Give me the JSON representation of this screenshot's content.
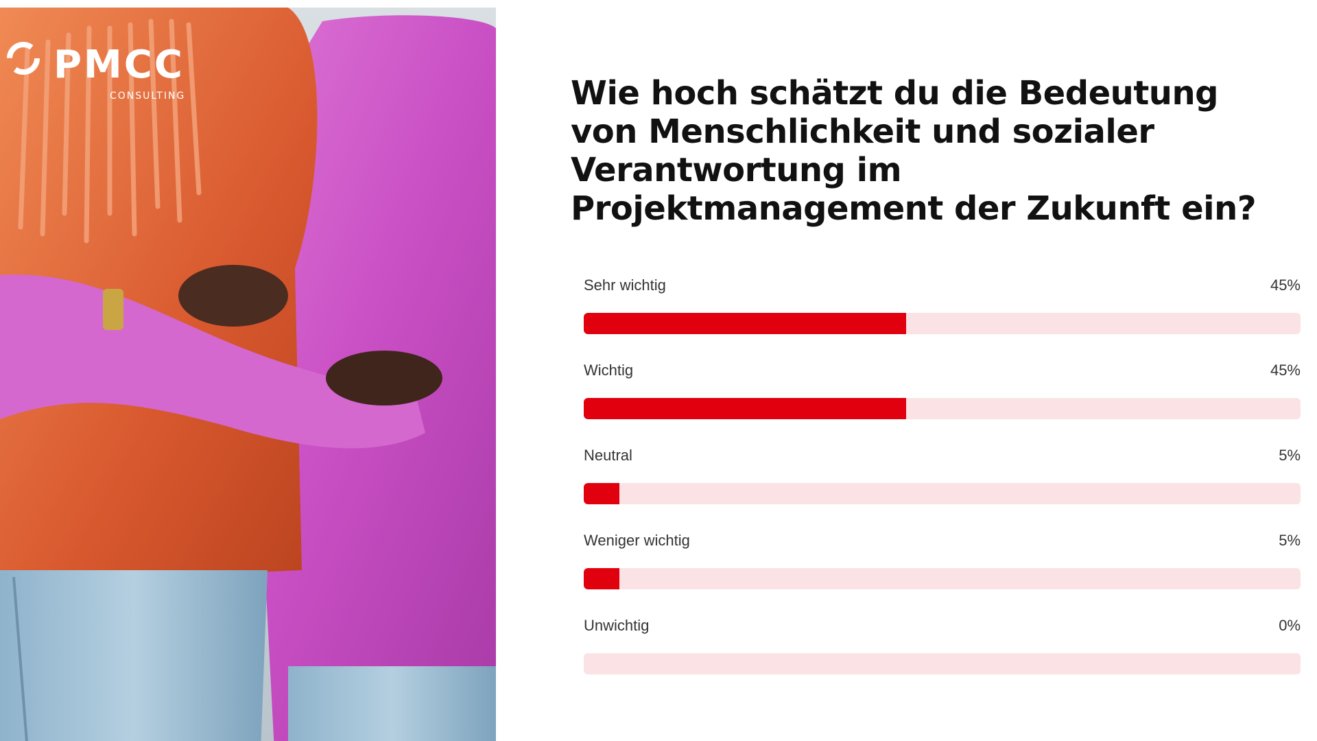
{
  "brand": {
    "name": "PMCC",
    "tagline": "CONSULTING"
  },
  "poll": {
    "question": "Wie hoch schätzt du die Bedeutung von Menschlichkeit und sozialer Verantwortung im Projektmanagement der Zukunft ein?",
    "options": [
      {
        "label": "Sehr wichtig",
        "percent_text": "45%",
        "percent": 45
      },
      {
        "label": "Wichtig",
        "percent_text": "45%",
        "percent": 45
      },
      {
        "label": "Neutral",
        "percent_text": "5%",
        "percent": 5
      },
      {
        "label": "Weniger wichtig",
        "percent_text": "5%",
        "percent": 5
      },
      {
        "label": "Unwichtig",
        "percent_text": "0%",
        "percent": 0
      }
    ]
  },
  "colors": {
    "bar_fill": "#e0000e",
    "bar_track": "#fbe3e5",
    "heading": "#111111",
    "label": "#333333"
  }
}
